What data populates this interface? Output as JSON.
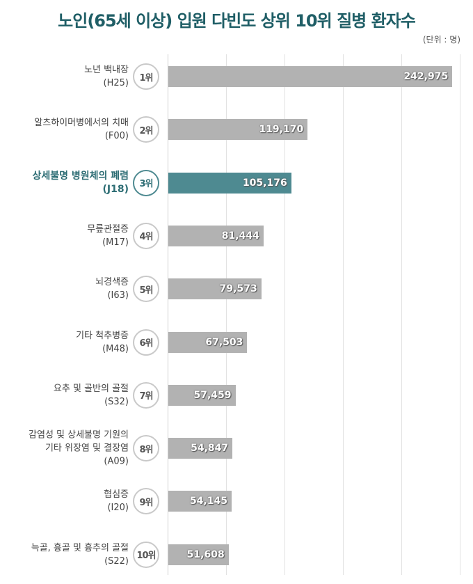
{
  "title": "노인(65세 이상) 입원 다빈도 상위 10위 질병 환자수",
  "unit": "(단위 : 명)",
  "colors": {
    "bar": "#b2b2b2",
    "highlight": "#4e8a91",
    "title": "#1f5e66"
  },
  "chart_data": {
    "type": "bar",
    "orientation": "horizontal",
    "title": "노인(65세 이상) 입원 다빈도 상위 10위 질병 환자수",
    "unit": "(단위 : 명)",
    "xlim": [
      0,
      250000
    ],
    "grid": true,
    "highlight_index": 2,
    "items": [
      {
        "rank": "1위",
        "lines": [
          "노년 백내장",
          "(H25)"
        ],
        "value": 242975,
        "label": "242,975"
      },
      {
        "rank": "2위",
        "lines": [
          "알츠하이머병에서의 치매",
          "(F00)"
        ],
        "value": 119170,
        "label": "119,170"
      },
      {
        "rank": "3위",
        "lines": [
          "상세불명 병원체의 폐렴",
          "(J18)"
        ],
        "value": 105176,
        "label": "105,176"
      },
      {
        "rank": "4위",
        "lines": [
          "무릎관절증",
          "(M17)"
        ],
        "value": 81444,
        "label": "81,444"
      },
      {
        "rank": "5위",
        "lines": [
          "뇌경색증",
          "(I63)"
        ],
        "value": 79573,
        "label": "79,573"
      },
      {
        "rank": "6위",
        "lines": [
          "기타 척추병증",
          "(M48)"
        ],
        "value": 67503,
        "label": "67,503"
      },
      {
        "rank": "7위",
        "lines": [
          "요추 및 골반의 골절",
          "(S32)"
        ],
        "value": 57459,
        "label": "57,459"
      },
      {
        "rank": "8위",
        "lines": [
          "감염성 및 상세불명 기원의",
          "기타 위장염 및 결장염",
          "(A09)"
        ],
        "value": 54847,
        "label": "54,847"
      },
      {
        "rank": "9위",
        "lines": [
          "협심증",
          "(I20)"
        ],
        "value": 54145,
        "label": "54,145"
      },
      {
        "rank": "10위",
        "lines": [
          "늑골, 흉골 및 흉추의 골절",
          "(S22)"
        ],
        "value": 51608,
        "label": "51,608"
      }
    ]
  }
}
